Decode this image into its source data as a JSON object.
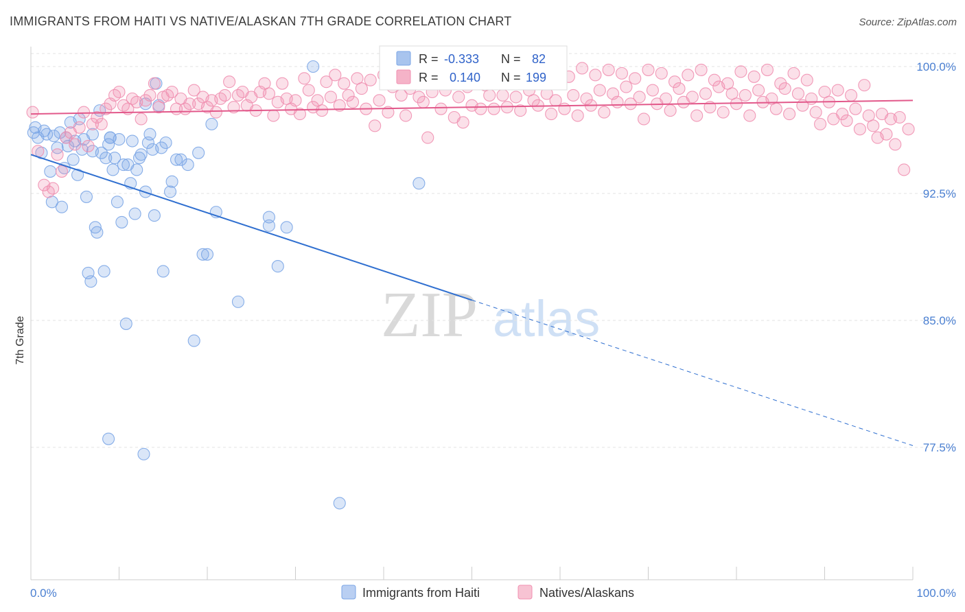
{
  "title": "IMMIGRANTS FROM HAITI VS NATIVE/ALASKAN 7TH GRADE CORRELATION CHART",
  "source": "Source: ZipAtlas.com",
  "watermark": {
    "zip": "ZIP",
    "atlas": "atlas"
  },
  "stats_legend": {
    "r_label": "R =",
    "n_label": "N =",
    "rows": [
      {
        "r": "-0.333",
        "n": "82",
        "color": "#a8c4ee"
      },
      {
        "r": "0.140",
        "n": "199",
        "color": "#f5b3c8"
      }
    ]
  },
  "bottom_legend": [
    {
      "label": "Immigrants from Haiti",
      "color": "#b9cff2"
    },
    {
      "label": "Natives/Alaskans",
      "color": "#f7c3d3"
    }
  ],
  "chart_data": {
    "type": "scatter",
    "title": "IMMIGRANTS FROM HAITI VS NATIVE/ALASKAN 7TH GRADE CORRELATION CHART",
    "xlabel": "",
    "ylabel": "7th Grade",
    "xlim": [
      0,
      100
    ],
    "ylim": [
      70.5,
      100.8
    ],
    "x_tick_labels": [
      "0.0%",
      "100.0%"
    ],
    "y_ticks": [
      77.5,
      85.0,
      92.5,
      100.0
    ],
    "y_tick_labels": [
      "77.5%",
      "85.0%",
      "92.5%",
      "100.0%"
    ],
    "grid": true,
    "legend_position": "bottom",
    "series": [
      {
        "name": "Immigrants from Haiti",
        "color": "#7aa5e6",
        "trend": {
          "x0": 0,
          "y0": 94.8,
          "x1": 50,
          "y1": 86.2,
          "dash_to_x": 100,
          "dash_to_y": 77.6,
          "color": "#2f6fd0"
        },
        "points": [
          [
            0.3,
            96.1
          ],
          [
            0.5,
            96.4
          ],
          [
            0.8,
            95.8
          ],
          [
            1.2,
            94.9
          ],
          [
            1.5,
            96.2
          ],
          [
            1.8,
            96.0
          ],
          [
            2.2,
            93.8
          ],
          [
            2.4,
            92.0
          ],
          [
            2.6,
            95.9
          ],
          [
            3.0,
            95.2
          ],
          [
            3.3,
            96.1
          ],
          [
            3.5,
            91.7
          ],
          [
            3.8,
            94.0
          ],
          [
            4.2,
            95.3
          ],
          [
            4.5,
            96.7
          ],
          [
            4.8,
            94.5
          ],
          [
            5.0,
            95.6
          ],
          [
            5.3,
            93.6
          ],
          [
            5.5,
            96.9
          ],
          [
            5.8,
            95.1
          ],
          [
            6.0,
            95.7
          ],
          [
            6.3,
            92.3
          ],
          [
            6.5,
            87.8
          ],
          [
            6.8,
            87.3
          ],
          [
            7.0,
            95.0
          ],
          [
            7.3,
            90.5
          ],
          [
            7.5,
            90.2
          ],
          [
            7.8,
            97.4
          ],
          [
            8.0,
            94.9
          ],
          [
            8.3,
            87.9
          ],
          [
            8.5,
            94.6
          ],
          [
            8.8,
            95.4
          ],
          [
            8.8,
            78.0
          ],
          [
            9.0,
            95.8
          ],
          [
            9.3,
            93.9
          ],
          [
            9.5,
            94.6
          ],
          [
            9.8,
            92.0
          ],
          [
            10.0,
            95.7
          ],
          [
            10.3,
            90.8
          ],
          [
            10.5,
            94.2
          ],
          [
            10.8,
            84.8
          ],
          [
            11.0,
            94.2
          ],
          [
            11.3,
            93.1
          ],
          [
            11.5,
            95.6
          ],
          [
            11.8,
            91.3
          ],
          [
            12.0,
            93.9
          ],
          [
            12.3,
            94.6
          ],
          [
            12.5,
            94.8
          ],
          [
            12.8,
            77.1
          ],
          [
            13.0,
            92.6
          ],
          [
            13.0,
            97.8
          ],
          [
            13.3,
            95.5
          ],
          [
            13.5,
            96.0
          ],
          [
            13.8,
            95.1
          ],
          [
            14.0,
            91.2
          ],
          [
            14.2,
            99.0
          ],
          [
            14.5,
            97.7
          ],
          [
            14.8,
            95.2
          ],
          [
            15.0,
            87.9
          ],
          [
            15.3,
            95.5
          ],
          [
            15.8,
            92.6
          ],
          [
            16.0,
            93.2
          ],
          [
            16.5,
            94.5
          ],
          [
            17.0,
            94.5
          ],
          [
            17.8,
            94.2
          ],
          [
            18.5,
            83.8
          ],
          [
            19.0,
            94.9
          ],
          [
            19.5,
            88.9
          ],
          [
            20.0,
            88.9
          ],
          [
            20.5,
            96.6
          ],
          [
            21.0,
            91.4
          ],
          [
            23.5,
            86.1
          ],
          [
            27.0,
            91.1
          ],
          [
            27.0,
            90.6
          ],
          [
            28.0,
            88.2
          ],
          [
            29.0,
            90.5
          ],
          [
            32.0,
            100.0
          ],
          [
            35.0,
            74.2
          ],
          [
            44.0,
            93.1
          ],
          [
            9.0,
            95.8
          ],
          [
            7.0,
            96.0
          ],
          [
            4.0,
            95.8
          ]
        ]
      },
      {
        "name": "Natives/Alaskans",
        "color": "#f08fb0",
        "trend": {
          "x0": 0,
          "y0": 97.2,
          "x1": 100,
          "y1": 98.0,
          "color": "#e2588a"
        },
        "points": [
          [
            0.2,
            97.3
          ],
          [
            0.8,
            95.0
          ],
          [
            1.5,
            93.0
          ],
          [
            2.0,
            92.6
          ],
          [
            2.5,
            92.8
          ],
          [
            3.0,
            94.8
          ],
          [
            3.5,
            93.8
          ],
          [
            4.0,
            95.8
          ],
          [
            4.5,
            96.1
          ],
          [
            5.0,
            95.4
          ],
          [
            5.5,
            96.4
          ],
          [
            6.0,
            97.3
          ],
          [
            6.5,
            95.3
          ],
          [
            7.0,
            96.6
          ],
          [
            7.5,
            97.0
          ],
          [
            8.0,
            96.6
          ],
          [
            8.5,
            97.5
          ],
          [
            9.0,
            97.8
          ],
          [
            9.5,
            98.3
          ],
          [
            10.0,
            98.5
          ],
          [
            10.5,
            97.7
          ],
          [
            11.0,
            97.5
          ],
          [
            11.5,
            98.1
          ],
          [
            12.0,
            97.9
          ],
          [
            12.5,
            96.9
          ],
          [
            13.0,
            98.0
          ],
          [
            13.5,
            98.3
          ],
          [
            14.0,
            99.0
          ],
          [
            14.5,
            97.6
          ],
          [
            15.0,
            98.2
          ],
          [
            15.5,
            98.3
          ],
          [
            16.0,
            98.5
          ],
          [
            16.5,
            97.5
          ],
          [
            17.0,
            98.1
          ],
          [
            17.5,
            97.5
          ],
          [
            18.0,
            97.8
          ],
          [
            18.5,
            98.6
          ],
          [
            19.0,
            97.8
          ],
          [
            19.5,
            98.2
          ],
          [
            20.0,
            97.6
          ],
          [
            20.5,
            98.0
          ],
          [
            21.0,
            97.3
          ],
          [
            21.5,
            98.1
          ],
          [
            22.0,
            98.3
          ],
          [
            22.5,
            99.1
          ],
          [
            23.0,
            97.6
          ],
          [
            23.5,
            98.3
          ],
          [
            24.0,
            98.5
          ],
          [
            24.5,
            97.7
          ],
          [
            25.0,
            98.2
          ],
          [
            25.5,
            97.4
          ],
          [
            26.0,
            98.5
          ],
          [
            26.5,
            99.0
          ],
          [
            27.0,
            98.4
          ],
          [
            27.5,
            97.1
          ],
          [
            28.0,
            97.9
          ],
          [
            28.5,
            99.0
          ],
          [
            29.0,
            98.1
          ],
          [
            29.5,
            97.5
          ],
          [
            30.0,
            98.0
          ],
          [
            30.5,
            97.2
          ],
          [
            31.0,
            99.3
          ],
          [
            31.5,
            98.6
          ],
          [
            32.0,
            97.6
          ],
          [
            32.5,
            98.0
          ],
          [
            33.0,
            97.4
          ],
          [
            33.5,
            99.1
          ],
          [
            34.0,
            98.2
          ],
          [
            34.5,
            99.5
          ],
          [
            35.0,
            97.7
          ],
          [
            35.5,
            99.0
          ],
          [
            36.0,
            98.3
          ],
          [
            36.5,
            97.9
          ],
          [
            37.0,
            99.3
          ],
          [
            37.5,
            98.7
          ],
          [
            38.0,
            97.5
          ],
          [
            38.5,
            99.2
          ],
          [
            39.0,
            96.5
          ],
          [
            39.5,
            98.0
          ],
          [
            40.0,
            99.5
          ],
          [
            40.5,
            97.3
          ],
          [
            41.0,
            98.8
          ],
          [
            41.5,
            99.0
          ],
          [
            42.0,
            98.3
          ],
          [
            42.5,
            97.1
          ],
          [
            43.0,
            98.7
          ],
          [
            43.5,
            99.8
          ],
          [
            44.0,
            98.2
          ],
          [
            44.5,
            97.9
          ],
          [
            45.0,
            95.8
          ],
          [
            45.5,
            98.5
          ],
          [
            46.0,
            99.0
          ],
          [
            46.5,
            97.5
          ],
          [
            47.0,
            98.6
          ],
          [
            47.5,
            99.5
          ],
          [
            48.0,
            97.0
          ],
          [
            48.5,
            98.2
          ],
          [
            49.0,
            96.7
          ],
          [
            49.5,
            98.8
          ],
          [
            50.0,
            97.7
          ],
          [
            50.5,
            99.0
          ],
          [
            51.0,
            97.5
          ],
          [
            51.5,
            98.9
          ],
          [
            52.0,
            98.3
          ],
          [
            52.5,
            97.5
          ],
          [
            53.0,
            99.4
          ],
          [
            53.5,
            98.3
          ],
          [
            54.0,
            97.6
          ],
          [
            54.5,
            99.2
          ],
          [
            55.0,
            98.2
          ],
          [
            55.5,
            97.4
          ],
          [
            56.0,
            99.7
          ],
          [
            56.5,
            98.6
          ],
          [
            57.0,
            98.0
          ],
          [
            57.5,
            97.7
          ],
          [
            58.0,
            99.6
          ],
          [
            58.5,
            98.4
          ],
          [
            59.0,
            97.2
          ],
          [
            59.5,
            98.0
          ],
          [
            60.0,
            99.8
          ],
          [
            60.5,
            97.5
          ],
          [
            61.0,
            99.4
          ],
          [
            61.5,
            98.3
          ],
          [
            62.0,
            97.1
          ],
          [
            62.5,
            99.9
          ],
          [
            63.0,
            98.1
          ],
          [
            63.5,
            97.7
          ],
          [
            64.0,
            99.5
          ],
          [
            64.5,
            98.6
          ],
          [
            65.0,
            97.3
          ],
          [
            65.5,
            99.8
          ],
          [
            66.0,
            98.4
          ],
          [
            66.5,
            97.9
          ],
          [
            67.0,
            99.6
          ],
          [
            67.5,
            98.8
          ],
          [
            68.0,
            97.8
          ],
          [
            68.5,
            99.3
          ],
          [
            69.0,
            98.2
          ],
          [
            69.5,
            96.9
          ],
          [
            70.0,
            99.8
          ],
          [
            70.5,
            98.6
          ],
          [
            71.0,
            97.8
          ],
          [
            71.5,
            99.6
          ],
          [
            72.0,
            98.1
          ],
          [
            72.5,
            97.4
          ],
          [
            73.0,
            99.1
          ],
          [
            73.5,
            98.7
          ],
          [
            74.0,
            97.9
          ],
          [
            74.5,
            99.5
          ],
          [
            75.0,
            98.2
          ],
          [
            75.5,
            97.1
          ],
          [
            76.0,
            99.8
          ],
          [
            76.5,
            98.4
          ],
          [
            77.0,
            97.6
          ],
          [
            77.5,
            99.2
          ],
          [
            78.0,
            98.8
          ],
          [
            78.5,
            97.3
          ],
          [
            79.0,
            99.0
          ],
          [
            79.5,
            98.4
          ],
          [
            80.0,
            97.8
          ],
          [
            80.5,
            99.7
          ],
          [
            81.0,
            98.3
          ],
          [
            81.5,
            97.1
          ],
          [
            82.0,
            99.4
          ],
          [
            82.5,
            98.6
          ],
          [
            83.0,
            97.9
          ],
          [
            83.5,
            99.8
          ],
          [
            84.0,
            98.1
          ],
          [
            84.5,
            97.5
          ],
          [
            85.0,
            99.0
          ],
          [
            85.5,
            98.7
          ],
          [
            86.0,
            97.2
          ],
          [
            86.5,
            99.6
          ],
          [
            87.0,
            98.4
          ],
          [
            87.5,
            97.7
          ],
          [
            88.0,
            99.2
          ],
          [
            88.5,
            98.1
          ],
          [
            89.0,
            97.3
          ],
          [
            89.5,
            96.6
          ],
          [
            90.0,
            98.5
          ],
          [
            90.5,
            97.9
          ],
          [
            91.0,
            96.9
          ],
          [
            91.5,
            98.6
          ],
          [
            92.0,
            97.2
          ],
          [
            92.5,
            96.8
          ],
          [
            93.0,
            98.3
          ],
          [
            93.5,
            97.5
          ],
          [
            94.0,
            96.3
          ],
          [
            94.5,
            98.9
          ],
          [
            95.0,
            97.1
          ],
          [
            95.5,
            96.5
          ],
          [
            96.0,
            95.8
          ],
          [
            96.5,
            97.2
          ],
          [
            97.0,
            96.0
          ],
          [
            97.5,
            96.9
          ],
          [
            98.0,
            95.4
          ],
          [
            98.5,
            97.0
          ],
          [
            99.0,
            93.9
          ],
          [
            99.5,
            96.3
          ]
        ]
      }
    ]
  }
}
